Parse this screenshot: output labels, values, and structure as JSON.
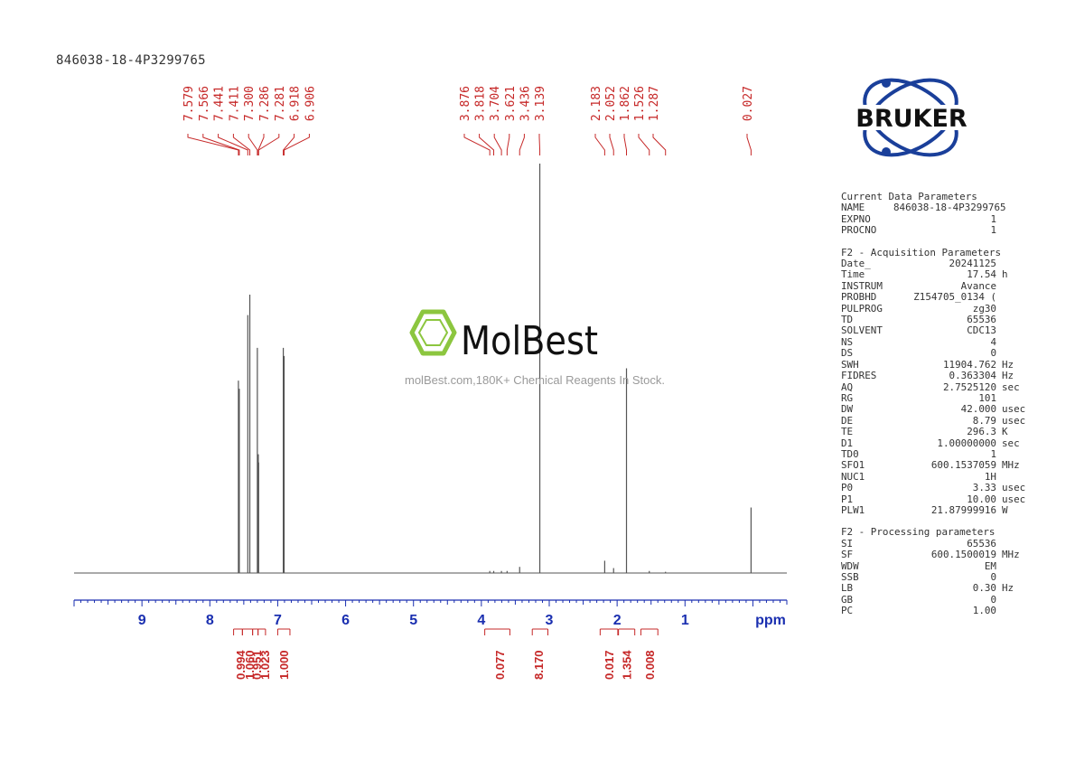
{
  "header": {
    "title": "846038-18-4P3299765"
  },
  "watermark": {
    "brand": "MolBest",
    "tagline": "molBest.com,180K+ Chemical Reagents In Stock."
  },
  "logo": {
    "text": "BRUKER",
    "color": "#1a3f9a"
  },
  "colors": {
    "spectrum": "#555555",
    "peak_labels": "#c62828",
    "axis": "#1a2fb0",
    "watermark_green": "#8cc63f"
  },
  "chart_data": {
    "type": "line",
    "xlabel": "ppm",
    "xlim": [
      10.0,
      -0.5
    ],
    "x_ticks": [
      9,
      8,
      7,
      6,
      5,
      4,
      3,
      2,
      1
    ],
    "x_tick_labels": [
      "9",
      "8",
      "7",
      "6",
      "5",
      "4",
      "3",
      "2",
      "1"
    ],
    "peak_labels": [
      "7.579",
      "7.566",
      "7.441",
      "7.411",
      "7.300",
      "7.286",
      "7.281",
      "6.918",
      "6.906",
      "3.876",
      "3.818",
      "3.704",
      "3.621",
      "3.436",
      "3.139",
      "2.183",
      "2.052",
      "1.862",
      "1.526",
      "1.287",
      "0.027"
    ],
    "peaks": [
      {
        "ppm": 7.579,
        "intensity": 0.47
      },
      {
        "ppm": 7.566,
        "intensity": 0.45
      },
      {
        "ppm": 7.441,
        "intensity": 0.63
      },
      {
        "ppm": 7.411,
        "intensity": 0.68
      },
      {
        "ppm": 7.3,
        "intensity": 0.55
      },
      {
        "ppm": 7.286,
        "intensity": 0.29
      },
      {
        "ppm": 7.281,
        "intensity": 0.27
      },
      {
        "ppm": 6.918,
        "intensity": 0.55
      },
      {
        "ppm": 6.906,
        "intensity": 0.53
      },
      {
        "ppm": 3.876,
        "intensity": 0.005
      },
      {
        "ppm": 3.818,
        "intensity": 0.005
      },
      {
        "ppm": 3.704,
        "intensity": 0.005
      },
      {
        "ppm": 3.621,
        "intensity": 0.005
      },
      {
        "ppm": 3.436,
        "intensity": 0.015
      },
      {
        "ppm": 3.139,
        "intensity": 1.0
      },
      {
        "ppm": 2.183,
        "intensity": 0.03
      },
      {
        "ppm": 2.052,
        "intensity": 0.012
      },
      {
        "ppm": 1.862,
        "intensity": 0.5
      },
      {
        "ppm": 1.526,
        "intensity": 0.005
      },
      {
        "ppm": 1.287,
        "intensity": 0.003
      },
      {
        "ppm": 0.027,
        "intensity": 0.16
      }
    ],
    "integrals": [
      {
        "ppm_from": 7.65,
        "ppm_to": 7.52,
        "value": "0.994",
        "label_ppm": 7.55
      },
      {
        "ppm_from": 7.52,
        "ppm_to": 7.37,
        "value": "1.060",
        "label_ppm": 7.42
      },
      {
        "ppm_from": 7.37,
        "ppm_to": 7.29,
        "value": "0.951",
        "label_ppm": 7.31
      },
      {
        "ppm_from": 7.29,
        "ppm_to": 7.18,
        "value": "1.023",
        "label_ppm": 7.19
      },
      {
        "ppm_from": 7.0,
        "ppm_to": 6.82,
        "value": "1.000",
        "label_ppm": 6.91
      },
      {
        "ppm_from": 3.95,
        "ppm_to": 3.58,
        "value": "0.077",
        "label_ppm": 3.73
      },
      {
        "ppm_from": 3.25,
        "ppm_to": 3.02,
        "value": "8.170",
        "label_ppm": 3.16
      },
      {
        "ppm_from": 2.25,
        "ppm_to": 1.99,
        "value": "0.017",
        "label_ppm": 2.12
      },
      {
        "ppm_from": 1.98,
        "ppm_to": 1.74,
        "value": "1.354",
        "label_ppm": 1.86
      },
      {
        "ppm_from": 1.65,
        "ppm_to": 1.4,
        "value": "0.008",
        "label_ppm": 1.52
      }
    ]
  },
  "params": {
    "current": {
      "title": "Current Data Parameters",
      "rows": [
        {
          "name": "NAME",
          "value": "846038-18-4P3299765",
          "unit": ""
        },
        {
          "name": "EXPNO",
          "value": "1",
          "unit": ""
        },
        {
          "name": "PROCNO",
          "value": "1",
          "unit": ""
        }
      ]
    },
    "acquisition": {
      "title": "F2 - Acquisition Parameters",
      "rows": [
        {
          "name": "Date_",
          "value": "20241125",
          "unit": ""
        },
        {
          "name": "Time",
          "value": "17.54",
          "unit": "h"
        },
        {
          "name": "INSTRUM",
          "value": "Avance",
          "unit": ""
        },
        {
          "name": "PROBHD",
          "value": "Z154705_0134 (",
          "unit": ""
        },
        {
          "name": "PULPROG",
          "value": "zg30",
          "unit": ""
        },
        {
          "name": "TD",
          "value": "65536",
          "unit": ""
        },
        {
          "name": "SOLVENT",
          "value": "CDC13",
          "unit": ""
        },
        {
          "name": "NS",
          "value": "4",
          "unit": ""
        },
        {
          "name": "DS",
          "value": "0",
          "unit": ""
        },
        {
          "name": "SWH",
          "value": "11904.762",
          "unit": "Hz"
        },
        {
          "name": "FIDRES",
          "value": "0.363304",
          "unit": "Hz"
        },
        {
          "name": "AQ",
          "value": "2.7525120",
          "unit": "sec"
        },
        {
          "name": "RG",
          "value": "101",
          "unit": ""
        },
        {
          "name": "DW",
          "value": "42.000",
          "unit": "usec"
        },
        {
          "name": "DE",
          "value": "8.79",
          "unit": "usec"
        },
        {
          "name": "TE",
          "value": "296.3",
          "unit": "K"
        },
        {
          "name": "D1",
          "value": "1.00000000",
          "unit": "sec"
        },
        {
          "name": "TD0",
          "value": "1",
          "unit": ""
        },
        {
          "name": "SFO1",
          "value": "600.1537059",
          "unit": "MHz"
        },
        {
          "name": "NUC1",
          "value": "1H",
          "unit": ""
        },
        {
          "name": "P0",
          "value": "3.33",
          "unit": "usec"
        },
        {
          "name": "P1",
          "value": "10.00",
          "unit": "usec"
        },
        {
          "name": "PLW1",
          "value": "21.87999916",
          "unit": "W"
        }
      ]
    },
    "processing": {
      "title": "F2 - Processing parameters",
      "rows": [
        {
          "name": "SI",
          "value": "65536",
          "unit": ""
        },
        {
          "name": "SF",
          "value": "600.1500019",
          "unit": "MHz"
        },
        {
          "name": "WDW",
          "value": "EM",
          "unit": ""
        },
        {
          "name": "SSB",
          "value": "0",
          "unit": ""
        },
        {
          "name": "LB",
          "value": "0.30",
          "unit": "Hz"
        },
        {
          "name": "GB",
          "value": "0",
          "unit": ""
        },
        {
          "name": "PC",
          "value": "1.00",
          "unit": ""
        }
      ]
    }
  }
}
